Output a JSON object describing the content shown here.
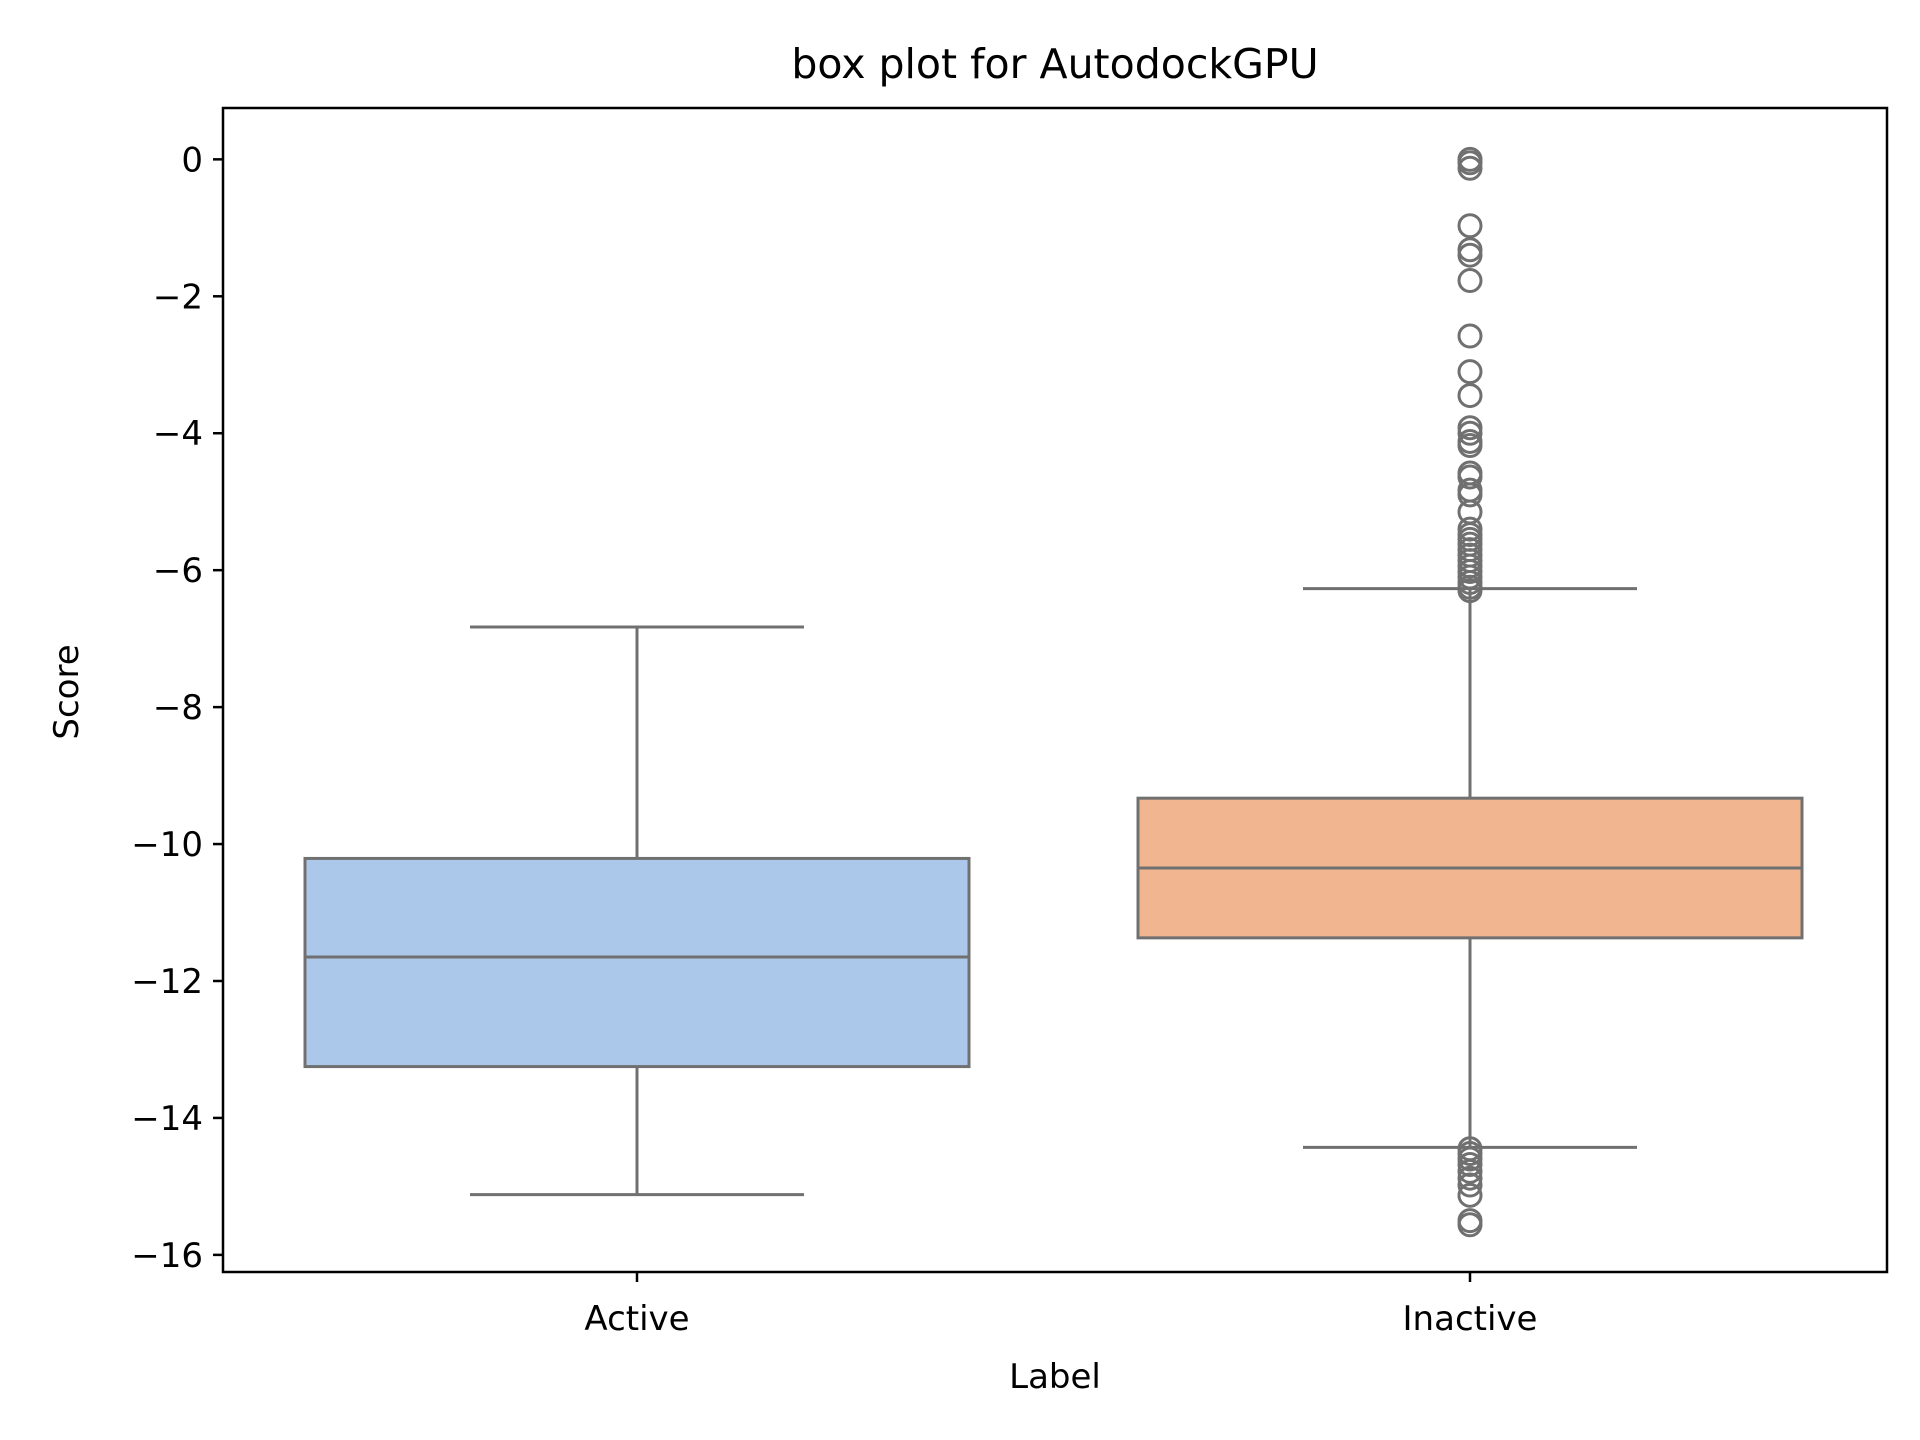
{
  "chart_data": {
    "type": "box",
    "title": "box plot for AutodockGPU",
    "xlabel": "Label",
    "ylabel": "Score",
    "categories": [
      "Active",
      "Inactive"
    ],
    "ylim": [
      -16.25,
      0.75
    ],
    "yticks": [
      0,
      -2,
      -4,
      -6,
      -8,
      -10,
      -12,
      -14,
      -16
    ],
    "ytick_labels": [
      "0",
      "−2",
      "−4",
      "−6",
      "−8",
      "−10",
      "−12",
      "−14",
      "−16"
    ],
    "grid": false,
    "colors": {
      "box_fill": [
        "#abc8eb",
        "#f1b690"
      ],
      "line": "#707070",
      "frame": "#000000"
    },
    "boxes": [
      {
        "category": "Active",
        "whisker_low": -15.12,
        "q1": -13.25,
        "median": -11.65,
        "q3": -10.21,
        "whisker_high": -6.83,
        "outliers": []
      },
      {
        "category": "Inactive",
        "whisker_low": -14.43,
        "q1": -11.37,
        "median": -10.35,
        "q3": -9.33,
        "whisker_high": -6.27,
        "outliers": [
          0.0,
          -0.05,
          -0.13,
          -0.97,
          -1.32,
          -1.4,
          -1.77,
          -2.58,
          -3.1,
          -3.45,
          -3.92,
          -4.0,
          -4.12,
          -4.18,
          -4.58,
          -4.64,
          -4.83,
          -4.9,
          -5.15,
          -5.4,
          -5.48,
          -5.55,
          -5.62,
          -5.7,
          -5.78,
          -5.86,
          -5.94,
          -6.02,
          -6.1,
          -6.18,
          -6.25,
          -6.3,
          -14.45,
          -14.52,
          -14.6,
          -14.68,
          -14.78,
          -14.88,
          -14.98,
          -15.13,
          -15.5,
          -15.56
        ]
      }
    ]
  }
}
